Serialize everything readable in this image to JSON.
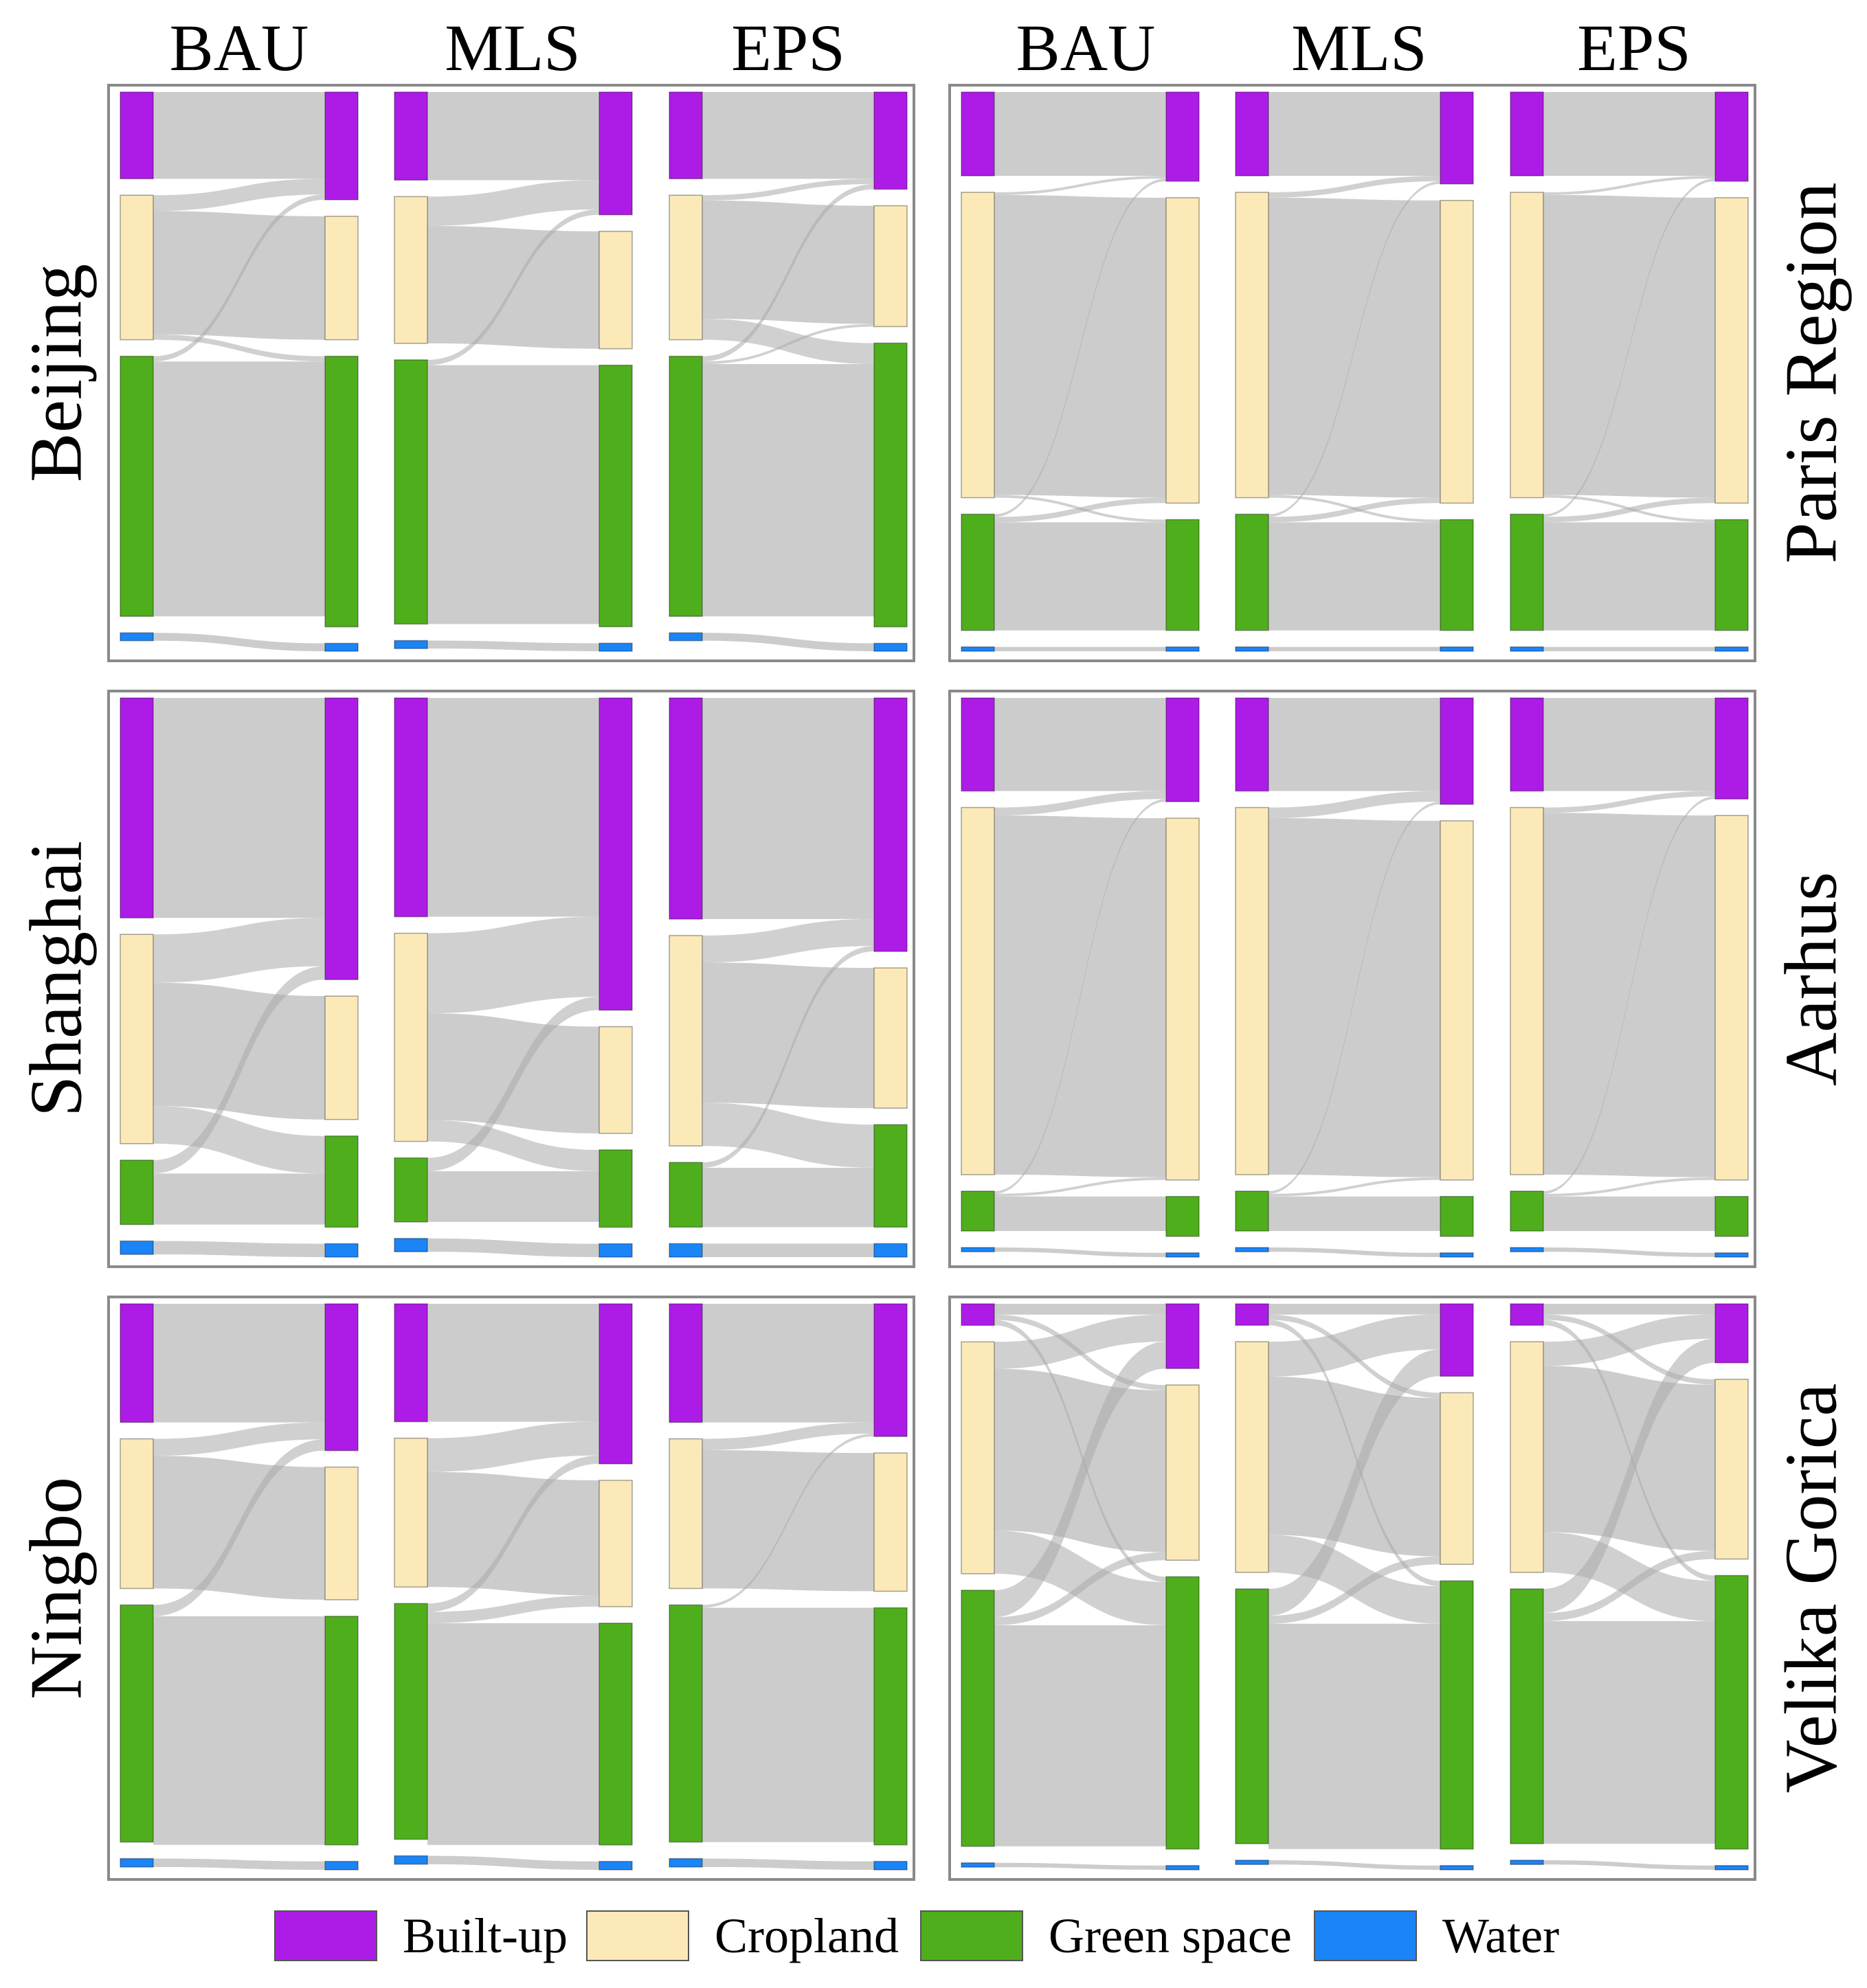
{
  "chart_data": {
    "type": "sankey",
    "title": "",
    "scenario_labels": [
      "BAU",
      "MLS",
      "EPS"
    ],
    "categories": [
      "Built-up",
      "Cropland",
      "Green space",
      "Water"
    ],
    "colors": {
      "Built-up": "#ad1ce7",
      "Cropland": "#fbe9b8",
      "Green space": "#4fae1c",
      "Water": "#1b84f7",
      "flow": "#c9c9c9",
      "flow_strong": "#a9a9a9"
    },
    "unit": "relative share of area (%)",
    "legend": {
      "position": "bottom",
      "items": [
        "Built-up",
        "Cropland",
        "Green space",
        "Water"
      ]
    },
    "cities": [
      {
        "name": "Beijing",
        "label_side": "left",
        "scenarios": [
          {
            "name": "BAU",
            "initial": [
              16.5,
              27.5,
              49.5,
              1.5
            ],
            "final": [
              20.5,
              23.5,
              51.5,
              1.5
            ],
            "transitions": [
              [
                16.5,
                0,
                0,
                0
              ],
              [
                3.0,
                23.5,
                1.0,
                0
              ],
              [
                1.0,
                0,
                48.5,
                0
              ],
              [
                0,
                0,
                0,
                1.5
              ]
            ]
          },
          {
            "name": "MLS",
            "initial": [
              16.5,
              27.5,
              49.5,
              1.5
            ],
            "final": [
              23.0,
              22.0,
              49.0,
              1.5
            ],
            "transitions": [
              [
                16.5,
                0,
                0,
                0
              ],
              [
                5.5,
                22.0,
                0,
                0
              ],
              [
                1.0,
                0,
                48.5,
                0
              ],
              [
                0,
                0,
                0,
                1.5
              ]
            ]
          },
          {
            "name": "EPS",
            "initial": [
              16.5,
              27.5,
              49.5,
              1.5
            ],
            "final": [
              18.5,
              23.0,
              54.0,
              1.5
            ],
            "transitions": [
              [
                16.5,
                0,
                0,
                0
              ],
              [
                1.0,
                22.5,
                4.0,
                0
              ],
              [
                1.0,
                0.5,
                48.0,
                0
              ],
              [
                0,
                0,
                0,
                1.5
              ]
            ]
          }
        ]
      },
      {
        "name": "Shanghai",
        "label_side": "left",
        "scenarios": [
          {
            "name": "BAU",
            "initial": [
              41.0,
              39.0,
              12.0,
              2.5
            ],
            "final": [
              52.5,
              23.0,
              17.0,
              2.5
            ],
            "transitions": [
              [
                41.0,
                0,
                0,
                0
              ],
              [
                9.0,
                23.0,
                7.0,
                0
              ],
              [
                2.5,
                0,
                9.5,
                0
              ],
              [
                0,
                0,
                0,
                2.5
              ]
            ]
          },
          {
            "name": "MLS",
            "initial": [
              41.0,
              39.0,
              12.0,
              2.5
            ],
            "final": [
              58.5,
              20.0,
              14.5,
              2.5
            ],
            "transitions": [
              [
                41.0,
                0,
                0,
                0
              ],
              [
                15.0,
                20.0,
                4.0,
                0
              ],
              [
                2.5,
                0,
                9.5,
                0
              ],
              [
                0,
                0,
                0,
                2.5
              ]
            ]
          },
          {
            "name": "EPS",
            "initial": [
              41.0,
              39.0,
              12.0,
              2.5
            ],
            "final": [
              47.0,
              26.0,
              19.0,
              2.5
            ],
            "transitions": [
              [
                41.0,
                0,
                0,
                0
              ],
              [
                5.0,
                26.0,
                8.0,
                0
              ],
              [
                1.0,
                0,
                11.0,
                0
              ],
              [
                0,
                0,
                0,
                2.5
              ]
            ]
          }
        ]
      },
      {
        "name": "Ningbo",
        "label_side": "left",
        "scenarios": [
          {
            "name": "BAU",
            "initial": [
              21.0,
              26.5,
              42.0,
              1.5
            ],
            "final": [
              26.0,
              23.5,
              40.5,
              1.5
            ],
            "transitions": [
              [
                21.0,
                0,
                0,
                0
              ],
              [
                3.0,
                23.5,
                0,
                0
              ],
              [
                2.0,
                0,
                40.5,
                0
              ],
              [
                0,
                0,
                0,
                1.5
              ]
            ]
          },
          {
            "name": "MLS",
            "initial": [
              21.0,
              26.5,
              42.0,
              1.5
            ],
            "final": [
              28.5,
              22.5,
              39.5,
              1.5
            ],
            "transitions": [
              [
                21.0,
                0,
                0,
                0
              ],
              [
                6.0,
                20.5,
                0,
                0
              ],
              [
                1.5,
                2.0,
                39.5,
                0
              ],
              [
                0,
                0,
                0,
                1.5
              ]
            ]
          },
          {
            "name": "EPS",
            "initial": [
              21.0,
              26.5,
              42.0,
              1.5
            ],
            "final": [
              23.5,
              24.5,
              42.0,
              1.5
            ],
            "transitions": [
              [
                21.0,
                0,
                0,
                0
              ],
              [
                2.0,
                24.5,
                0,
                0
              ],
              [
                0.5,
                0,
                41.5,
                0
              ],
              [
                0,
                0,
                0,
                1.5
              ]
            ]
          }
        ]
      },
      {
        "name": "Paris Region",
        "label_side": "right",
        "scenarios": [
          {
            "name": "BAU",
            "initial": [
              15.5,
              56.5,
              21.5,
              0.8
            ],
            "final": [
              16.5,
              56.5,
              20.5,
              0.8
            ],
            "transitions": [
              [
                15.5,
                0,
                0,
                0
              ],
              [
                0.5,
                55.5,
                0.5,
                0
              ],
              [
                0.5,
                1.0,
                20.0,
                0
              ],
              [
                0,
                0,
                0,
                0.8
              ]
            ]
          },
          {
            "name": "MLS",
            "initial": [
              15.5,
              56.5,
              21.5,
              0.8
            ],
            "final": [
              17.0,
              56.0,
              20.5,
              0.8
            ],
            "transitions": [
              [
                15.5,
                0,
                0,
                0
              ],
              [
                1.0,
                55.0,
                0.5,
                0
              ],
              [
                0.5,
                1.0,
                20.0,
                0
              ],
              [
                0,
                0,
                0,
                0.8
              ]
            ]
          },
          {
            "name": "EPS",
            "initial": [
              15.5,
              56.5,
              21.5,
              0.8
            ],
            "final": [
              16.5,
              56.5,
              20.5,
              0.8
            ],
            "transitions": [
              [
                15.5,
                0,
                0,
                0
              ],
              [
                0.5,
                55.5,
                0.5,
                0
              ],
              [
                0.5,
                1.0,
                20.0,
                0
              ],
              [
                0,
                0,
                0,
                0.8
              ]
            ]
          }
        ]
      },
      {
        "name": "Aarhus",
        "label_side": "right",
        "scenarios": [
          {
            "name": "BAU",
            "initial": [
              17.5,
              69.0,
              7.5,
              0.8
            ],
            "final": [
              19.5,
              68.0,
              7.5,
              0.8
            ],
            "transitions": [
              [
                17.5,
                0,
                0,
                0
              ],
              [
                1.5,
                67.5,
                0,
                0
              ],
              [
                0.5,
                0.5,
                6.5,
                0
              ],
              [
                0,
                0,
                0,
                0.8
              ]
            ]
          },
          {
            "name": "MLS",
            "initial": [
              17.5,
              69.0,
              7.5,
              0.8
            ],
            "final": [
              20.0,
              67.5,
              7.5,
              0.8
            ],
            "transitions": [
              [
                17.5,
                0,
                0,
                0
              ],
              [
                2.0,
                67.0,
                0,
                0
              ],
              [
                0.5,
                0.5,
                6.5,
                0
              ],
              [
                0,
                0,
                0,
                0.8
              ]
            ]
          },
          {
            "name": "EPS",
            "initial": [
              17.5,
              69.0,
              7.5,
              0.8
            ],
            "final": [
              19.0,
              68.5,
              7.5,
              0.8
            ],
            "transitions": [
              [
                17.5,
                0,
                0,
                0
              ],
              [
                1.0,
                68.0,
                0,
                0
              ],
              [
                0.5,
                0.5,
                6.5,
                0
              ],
              [
                0,
                0,
                0,
                0.8
              ]
            ]
          }
        ]
      },
      {
        "name": "Velika Gorica",
        "label_side": "right",
        "scenarios": [
          {
            "name": "BAU",
            "initial": [
              4.0,
              43.0,
              47.5,
              0.8
            ],
            "final": [
              12.0,
              32.5,
              50.5,
              0.8
            ],
            "transitions": [
              [
                2.0,
                1.0,
                1.0,
                0
              ],
              [
                5.0,
                30.0,
                8.0,
                0
              ],
              [
                5.0,
                1.5,
                41.0,
                0
              ],
              [
                0,
                0,
                0,
                0.8
              ]
            ]
          },
          {
            "name": "MLS",
            "initial": [
              4.0,
              43.0,
              47.5,
              0.8
            ],
            "final": [
              13.5,
              32.0,
              50.0,
              0.8
            ],
            "transitions": [
              [
                2.0,
                1.0,
                1.0,
                0
              ],
              [
                6.5,
                29.5,
                7.0,
                0
              ],
              [
                5.0,
                1.5,
                42.0,
                0
              ],
              [
                0,
                0,
                0,
                0.8
              ]
            ]
          },
          {
            "name": "EPS",
            "initial": [
              4.0,
              43.0,
              47.5,
              0.8
            ],
            "final": [
              11.0,
              33.5,
              51.0,
              0.8
            ],
            "transitions": [
              [
                2.0,
                1.0,
                1.0,
                0
              ],
              [
                4.5,
                31.0,
                7.5,
                0
              ],
              [
                4.5,
                1.5,
                41.5,
                0
              ],
              [
                0,
                0,
                0,
                0.8
              ]
            ]
          }
        ]
      }
    ]
  }
}
